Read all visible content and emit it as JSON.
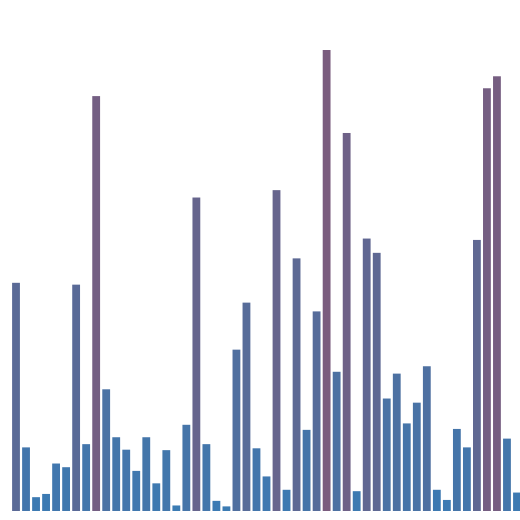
{
  "chart_data": {
    "type": "bar",
    "title": "",
    "xlabel": "",
    "ylabel": "",
    "grid": false,
    "legend": "none",
    "ylim": [
      0,
      100
    ],
    "values": [
      49.5,
      13.8,
      3.0,
      3.7,
      10.3,
      9.5,
      49.1,
      14.5,
      90.0,
      26.4,
      16.0,
      13.3,
      8.7,
      16.0,
      6.0,
      13.2,
      1.2,
      18.7,
      68.0,
      14.5,
      2.2,
      1.0,
      35.0,
      45.2,
      13.6,
      7.5,
      69.6,
      4.6,
      54.8,
      17.6,
      43.3,
      100.0,
      30.2,
      82.0,
      4.3,
      59.1,
      56.0,
      24.4,
      29.8,
      19.0,
      23.5,
      31.4,
      4.6,
      2.4,
      17.8,
      13.8,
      58.8,
      91.7,
      94.3,
      15.7,
      4.0
    ],
    "colors": {
      "low": "#3a7bb4",
      "mid": "#5a6a96",
      "high": "#7a5c7e"
    }
  }
}
